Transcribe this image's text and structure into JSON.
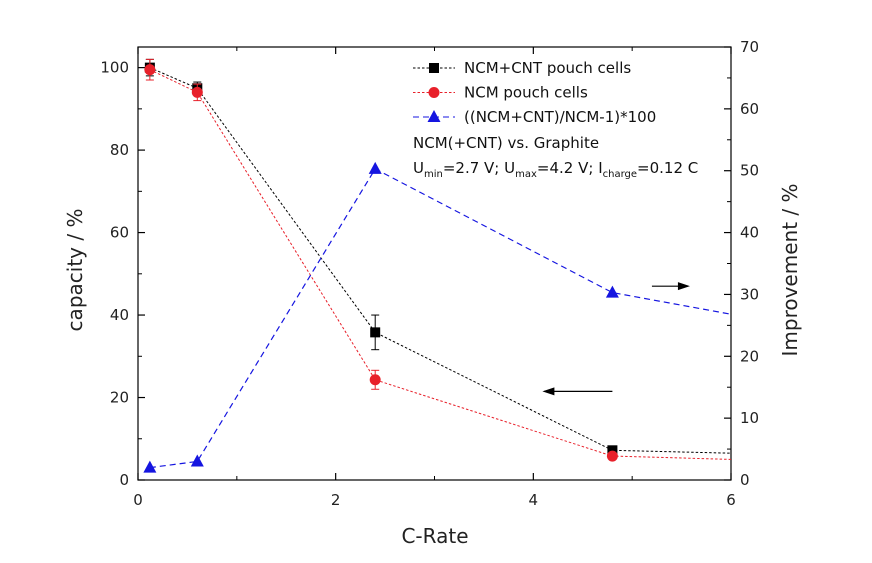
{
  "chart_data": {
    "type": "line",
    "xlabel": "C-Rate",
    "ylabel": "capacity / %",
    "y2label": "Improvement / %",
    "xlim": [
      0,
      6
    ],
    "ylim": [
      0,
      105
    ],
    "y2lim": [
      0,
      70
    ],
    "xticks": [
      0,
      2,
      4,
      6
    ],
    "yticks": [
      0,
      20,
      40,
      60,
      80,
      100
    ],
    "y2ticks": [
      0,
      10,
      20,
      30,
      40,
      50,
      60,
      70
    ],
    "grid": false,
    "legend_position": "top-right",
    "series": [
      {
        "name": "NCM+CNT pouch cells",
        "axis": "left",
        "color": "#000000",
        "marker": "square",
        "x": [
          0.12,
          0.6,
          2.4,
          4.8,
          6.0
        ],
        "y": [
          100,
          95,
          35.8,
          7.2,
          6.5
        ],
        "error": [
          2.0,
          1.5,
          4.2,
          0,
          0
        ],
        "marker_count": 4
      },
      {
        "name": "NCM pouch cells",
        "axis": "left",
        "color": "#e8202a",
        "marker": "circle",
        "x": [
          0.12,
          0.6,
          2.4,
          4.8,
          6.0
        ],
        "y": [
          99.5,
          94,
          24.3,
          5.8,
          5.0
        ],
        "error": [
          2.5,
          2.0,
          2.3,
          0,
          0
        ],
        "marker_count": 4
      },
      {
        "name": "((NCM+CNT)/NCM-1)*100",
        "axis": "right",
        "color": "#1515e0",
        "marker": "triangle",
        "x": [
          0.12,
          0.6,
          2.4,
          4.8,
          6.0
        ],
        "y": [
          2.0,
          3.0,
          50.3,
          30.3,
          26.8
        ],
        "error": [
          0,
          0,
          0,
          0,
          0
        ],
        "marker_count": 4
      }
    ],
    "annotations": [
      {
        "line1": "NCM(+CNT) vs. Graphite",
        "u_min": "U",
        "u_min_sub": "min",
        "u_min_val": "=2.7 V; ",
        "u_max": "U",
        "u_max_sub": "max",
        "u_max_val": "=4.2 V; ",
        "i_charge": "I",
        "i_charge_sub": "charge",
        "i_charge_val": "=0.12 C"
      }
    ],
    "arrows": [
      {
        "x": 4.8,
        "y": 21.5,
        "axis": "left",
        "direction": "left"
      },
      {
        "x": 5.2,
        "y": 47,
        "axis": "left",
        "direction": "right"
      }
    ]
  }
}
